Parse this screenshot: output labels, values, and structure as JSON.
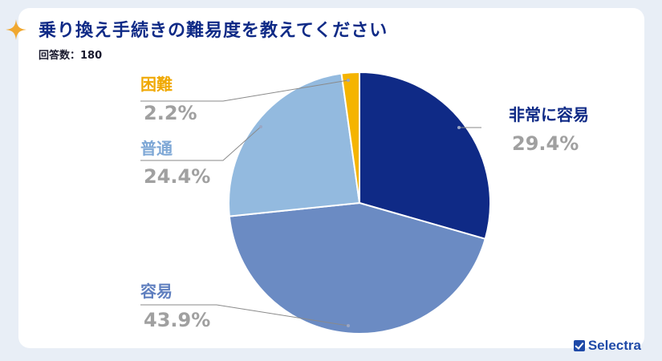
{
  "title": "乗り換え手続きの難易度を教えてください",
  "subtitle": "回答数：180",
  "brand": "Selectra",
  "chart_data": {
    "type": "pie",
    "title": "乗り換え手続きの難易度を教えてください",
    "start_angle_deg": 0,
    "direction": "clockwise",
    "slices": [
      {
        "label": "非常に容易",
        "value": 29.4,
        "value_label": "29.4%",
        "color": "#0f2a86",
        "label_color": "#0f2a86"
      },
      {
        "label": "容易",
        "value": 43.9,
        "value_label": "43.9%",
        "color": "#6b8bc3",
        "label_color": "#5f7fbf"
      },
      {
        "label": "普通",
        "value": 24.4,
        "value_label": "24.4%",
        "color": "#93badf",
        "label_color": "#7fa8d6"
      },
      {
        "label": "困難",
        "value": 2.2,
        "value_label": "2.2%",
        "color": "#f5b400",
        "label_color": "#f0a800"
      }
    ]
  }
}
